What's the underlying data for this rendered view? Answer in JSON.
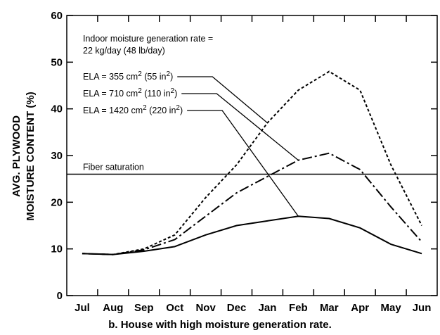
{
  "chart_data": {
    "type": "line",
    "caption": "b. House with high moisture generation rate.",
    "y_label_lines": [
      "AVG. PLYWOOD",
      "MOISTURE CONTENT (%)"
    ],
    "annotations": [
      "Indoor moisture generation rate =",
      "22 kg/day (48 lb/day)"
    ],
    "reference_line": {
      "label": "Fiber saturation",
      "value": 26
    },
    "categories": [
      "Jul",
      "Aug",
      "Sep",
      "Oct",
      "Nov",
      "Dec",
      "Jan",
      "Feb",
      "Mar",
      "Apr",
      "May",
      "Jun"
    ],
    "series": [
      {
        "label": [
          "ELA = 355 cm",
          "2",
          " (55 in",
          "2",
          ")"
        ],
        "color": "#000",
        "dash": "4,3",
        "values": [
          9,
          8.8,
          10,
          13,
          21,
          28,
          37,
          44,
          48,
          44,
          28,
          15
        ]
      },
      {
        "label": [
          "ELA = 710 cm",
          "2",
          " (110 in",
          "2",
          ")"
        ],
        "color": "#000",
        "dash": "14,4,3,4",
        "values": [
          9,
          8.8,
          9.8,
          12,
          17,
          22,
          25.5,
          29,
          30.5,
          27,
          19,
          11.5
        ]
      },
      {
        "label": [
          "ELA = 1420 cm",
          "2",
          " (220 in",
          "2",
          ")"
        ],
        "color": "#000",
        "dash": "none",
        "values": [
          9,
          8.8,
          9.5,
          10.5,
          13,
          15,
          16,
          17,
          16.5,
          14.5,
          11,
          9
        ]
      }
    ],
    "ylim": [
      0,
      60
    ],
    "yticks": [
      0,
      10,
      20,
      30,
      40,
      50,
      60
    ]
  }
}
